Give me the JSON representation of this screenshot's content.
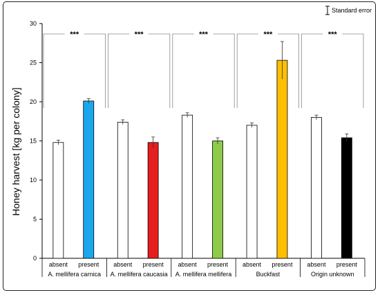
{
  "chart_data": {
    "type": "bar",
    "title": "",
    "ylabel": "Honey harvest [kg per colony]",
    "xlabel": "",
    "ylim": [
      0,
      30
    ],
    "yticks": [
      0,
      5,
      10,
      15,
      20,
      25,
      30
    ],
    "legend": {
      "label": "Standard error",
      "placement": "top-right"
    },
    "groups": [
      {
        "name": "A. mellifera carnica",
        "sig": "***",
        "bars": [
          {
            "label": "absent",
            "value": 14.8,
            "err": 0.3,
            "color": "#ffffff"
          },
          {
            "label": "present",
            "value": 20.1,
            "err": 0.3,
            "color": "#1aa7ec"
          }
        ]
      },
      {
        "name": "A. mellifera caucasia",
        "sig": "***",
        "bars": [
          {
            "label": "absent",
            "value": 17.4,
            "err": 0.3,
            "color": "#ffffff"
          },
          {
            "label": "present",
            "value": 14.8,
            "err": 0.7,
            "color": "#e61e1e"
          }
        ]
      },
      {
        "name": "A. mellifera mellifera",
        "sig": "***",
        "bars": [
          {
            "label": "absent",
            "value": 18.3,
            "err": 0.3,
            "color": "#ffffff"
          },
          {
            "label": "present",
            "value": 15.0,
            "err": 0.4,
            "color": "#8fca4a"
          }
        ]
      },
      {
        "name": "Buckfast",
        "sig": "***",
        "bars": [
          {
            "label": "absent",
            "value": 17.0,
            "err": 0.3,
            "color": "#ffffff"
          },
          {
            "label": "present",
            "value": 25.3,
            "err": 2.4,
            "color": "#ffbf00"
          }
        ]
      },
      {
        "name": "Origin unknown",
        "sig": "***",
        "bars": [
          {
            "label": "absent",
            "value": 18.0,
            "err": 0.3,
            "color": "#ffffff"
          },
          {
            "label": "present",
            "value": 15.4,
            "err": 0.5,
            "color": "#000000"
          }
        ]
      }
    ]
  }
}
